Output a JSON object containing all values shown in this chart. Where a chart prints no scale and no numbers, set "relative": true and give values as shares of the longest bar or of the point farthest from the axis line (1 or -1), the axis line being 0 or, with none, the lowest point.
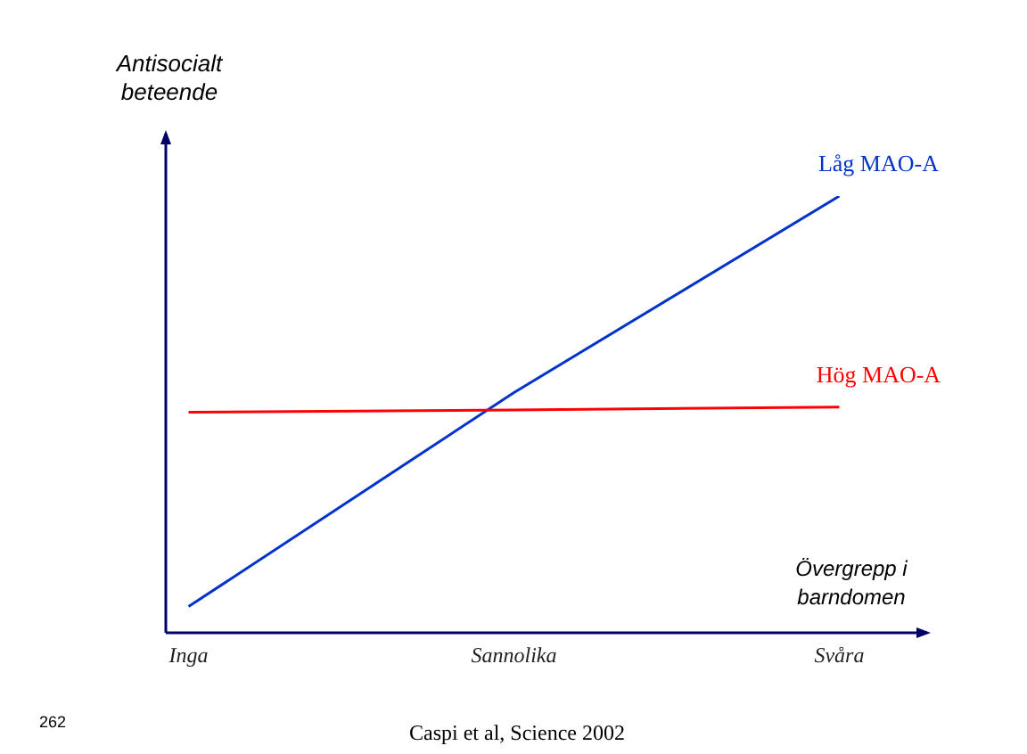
{
  "chart_data": {
    "type": "line",
    "relative": true,
    "xlabel": "Övergrepp i barndomen",
    "ylabel": "Antisocialt beteende",
    "categories": [
      "Inga",
      "Sannolika",
      "Svåra"
    ],
    "series": [
      {
        "name": "Låg MAO-A",
        "color": "#0033cc",
        "values": [
          0.06,
          0.55,
          1
        ]
      },
      {
        "name": "Hög MAO-A",
        "color": "#ff0000",
        "values": [
          0.505,
          0.51,
          0.517
        ]
      }
    ],
    "marker": "none",
    "grid": false,
    "legend": false,
    "annotations": [
      "262",
      "Caspi et al, Science 2002"
    ]
  }
}
